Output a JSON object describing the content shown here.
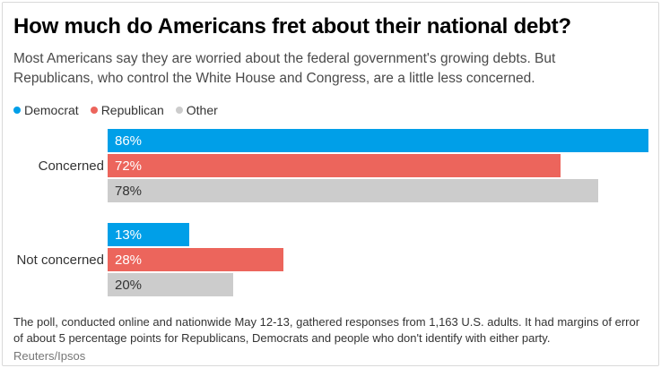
{
  "card": {
    "title": "How much do Americans fret about their national debt?",
    "subtitle": "Most Americans say they are worried about the federal government's growing debts. But Republicans, who control the White House and Congress, are a little less concerned.",
    "footnote": "The poll, conducted online and nationwide May 12-13, gathered responses from 1,163 U.S. adults. It had margins of error of about 5 percentage points for Republicans, Democrats and people who don't identify with either party.",
    "source": "Reuters/Ipsos"
  },
  "colors": {
    "democrat": "#009fe8",
    "republican": "#ec655c",
    "other": "#cccccc",
    "border": "#d9d9d9"
  },
  "chart_data": {
    "type": "bar",
    "orientation": "horizontal",
    "title": "How much do Americans fret about their national debt?",
    "categories": [
      "Concerned",
      "Not concerned"
    ],
    "series": [
      {
        "name": "Democrat",
        "color": "#009fe8",
        "label_color": "#ffffff",
        "values": [
          86,
          13
        ]
      },
      {
        "name": "Republican",
        "color": "#ec655c",
        "label_color": "#ffffff",
        "values": [
          72,
          28
        ]
      },
      {
        "name": "Other",
        "color": "#cccccc",
        "label_color": "#333333",
        "values": [
          78,
          20
        ]
      }
    ],
    "value_suffix": "%",
    "xlim": [
      0,
      86
    ],
    "grid": false,
    "legend_position": "top-left",
    "bar_labels": [
      "86%",
      "72%",
      "78%",
      "13%",
      "28%",
      "20%"
    ]
  }
}
